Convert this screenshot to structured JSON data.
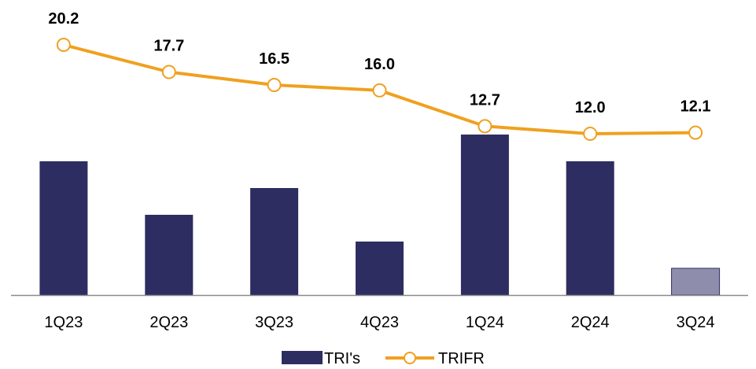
{
  "chart_data": {
    "type": "bar",
    "categories": [
      "1Q23",
      "2Q23",
      "3Q23",
      "4Q23",
      "1Q24",
      "2Q24",
      "3Q24"
    ],
    "series": [
      {
        "name": "TRI's",
        "type": "bar",
        "axis": "left",
        "values": [
          5,
          3,
          4,
          2,
          6,
          5,
          1
        ],
        "color": "#2e2d62",
        "highlight_color": "#8e8eac",
        "highlight_index": 6
      },
      {
        "name": "TRIFR",
        "type": "line",
        "axis": "right",
        "values": [
          20.2,
          17.7,
          16.5,
          16.0,
          12.7,
          12.0,
          12.1
        ],
        "labels": [
          "20.2",
          "17.7",
          "16.5",
          "16.0",
          "12.7",
          "12.0",
          "12.1"
        ],
        "color": "#f0a020",
        "marker": "open-circle"
      }
    ],
    "ylim_left": [
      0,
      6
    ],
    "ylim_right": [
      0,
      22
    ],
    "title": "",
    "xlabel": "",
    "ylabel": "",
    "grid": false,
    "axes_visible": false,
    "legend_position": "bottom-center"
  }
}
